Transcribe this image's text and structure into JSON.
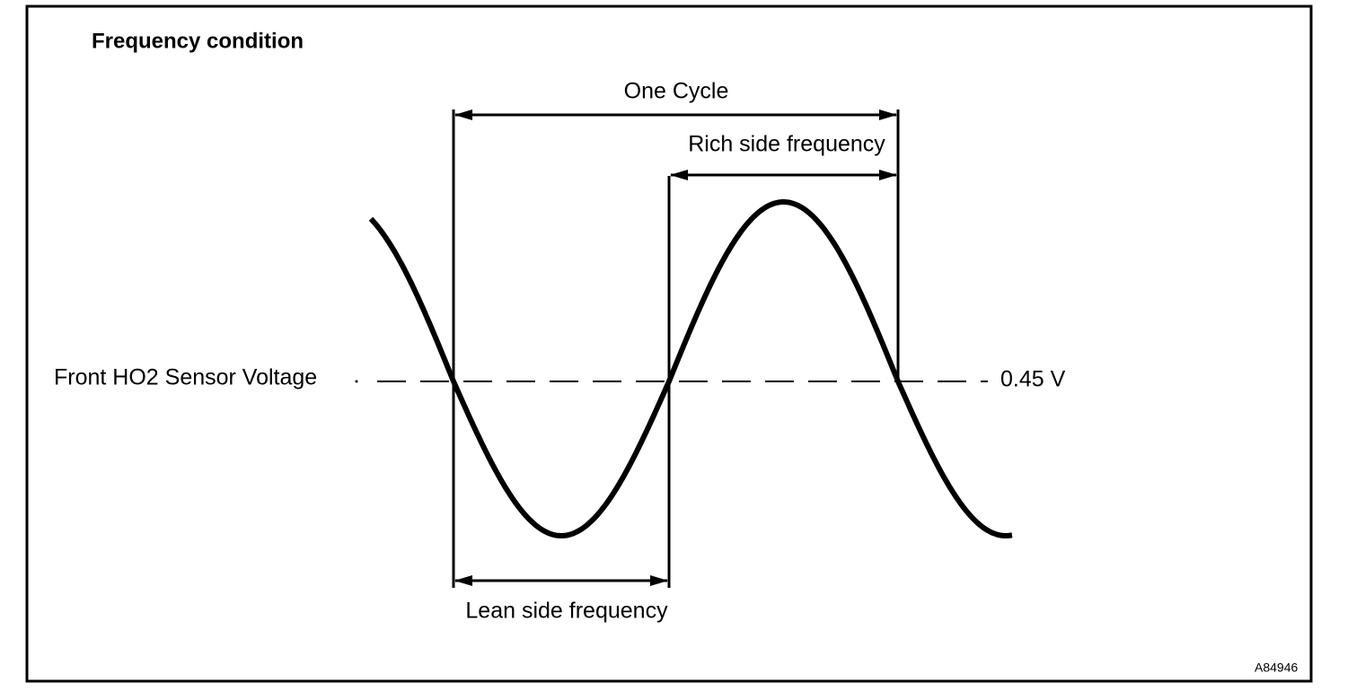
{
  "title": "Frequency condition",
  "labels": {
    "one_cycle": "One Cycle",
    "rich": "Rich side frequency",
    "lean": "Lean side frequency",
    "sensor": "Front HO2 Sensor Voltage",
    "threshold": "0.45 V",
    "figure_id": "A84946"
  }
}
